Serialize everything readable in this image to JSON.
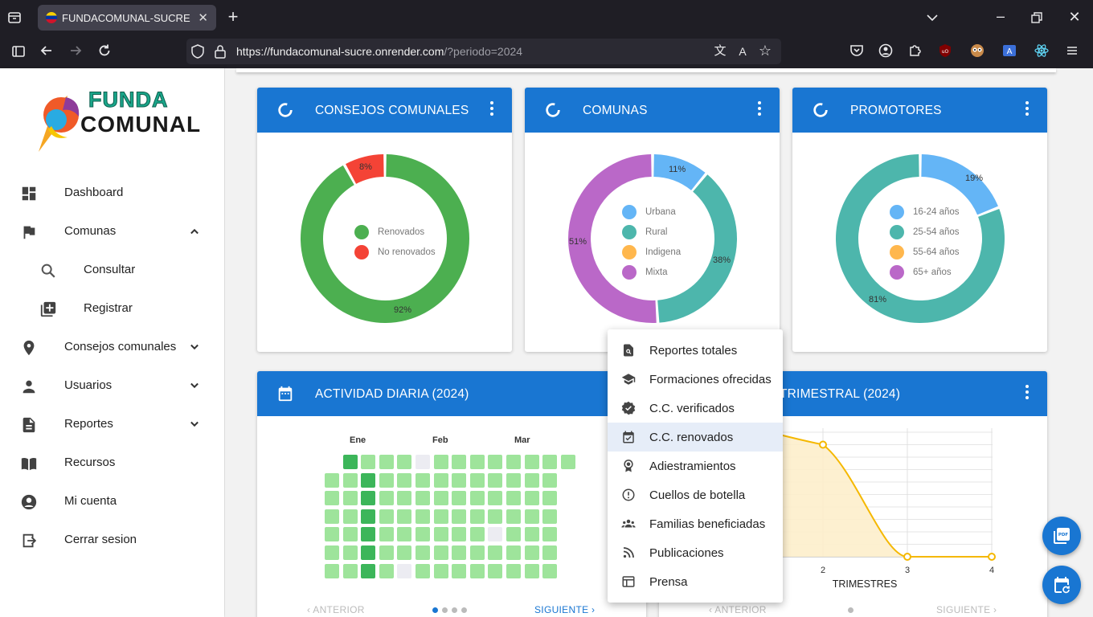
{
  "browser": {
    "tab_title": "FUNDACOMUNAL-SUCRE",
    "url_host": "https://fundacomunal-sucre.onrender.com",
    "url_rest": "/?periodo=2024"
  },
  "sidebar": {
    "logo_line1": "FUNDA",
    "logo_line2": "COMUNAL",
    "items": [
      {
        "label": "Dashboard"
      },
      {
        "label": "Comunas"
      },
      {
        "label": "Consultar"
      },
      {
        "label": "Registrar"
      },
      {
        "label": "Consejos comunales"
      },
      {
        "label": "Usuarios"
      },
      {
        "label": "Reportes"
      },
      {
        "label": "Recursos"
      },
      {
        "label": "Mi cuenta"
      },
      {
        "label": "Cerrar sesion"
      }
    ]
  },
  "cards": {
    "consejos": {
      "title": "CONSEJOS COMUNALES",
      "legend": [
        "Renovados",
        "No renovados"
      ],
      "pct_labels": [
        "8%",
        "92%"
      ]
    },
    "comunas": {
      "title": "COMUNAS",
      "legend": [
        "Urbana",
        "Rural",
        "Indigena",
        "Mixta"
      ],
      "pct_labels": [
        "11%",
        "38%",
        "51%"
      ]
    },
    "promotores": {
      "title": "PROMOTORES",
      "legend": [
        "16-24 años",
        "25-54 años",
        "55-64 años",
        "65+ años"
      ],
      "pct_labels": [
        "19%",
        "81%"
      ]
    },
    "actividad": {
      "title": "ACTIVIDAD DIARIA (2024)",
      "months": [
        "Ene",
        "Feb",
        "Mar"
      ],
      "prev": "ANTERIOR",
      "next": "SIGUIENTE"
    },
    "trimestral": {
      "title": "TRIMESTRAL (2024)",
      "xlabel": "TRIMESTRES",
      "ticks": [
        "2",
        "3",
        "4"
      ],
      "prev": "ANTERIOR",
      "next": "SIGUIENTE"
    }
  },
  "chart_data": [
    {
      "type": "pie",
      "title": "CONSEJOS COMUNALES",
      "categories": [
        "Renovados",
        "No renovados"
      ],
      "values": [
        92,
        8
      ],
      "colors": [
        "#4caf50",
        "#f44336"
      ]
    },
    {
      "type": "pie",
      "title": "COMUNAS",
      "categories": [
        "Urbana",
        "Rural",
        "Indigena",
        "Mixta"
      ],
      "values": [
        11,
        38,
        0,
        51
      ],
      "colors": [
        "#64b5f6",
        "#4db6ac",
        "#ffb74d",
        "#ba68c8"
      ]
    },
    {
      "type": "pie",
      "title": "PROMOTORES",
      "categories": [
        "16-24 años",
        "25-54 años",
        "55-64 años",
        "65+ años"
      ],
      "values": [
        19,
        81,
        0,
        0
      ],
      "colors": [
        "#64b5f6",
        "#4db6ac",
        "#ffb74d",
        "#ba68c8"
      ]
    },
    {
      "type": "line",
      "title": "TRIMESTRAL (2024)",
      "xlabel": "TRIMESTRES",
      "x": [
        2,
        3,
        4
      ],
      "y": [
        0.9,
        0,
        0
      ],
      "color": "#f5b800"
    }
  ],
  "menu": {
    "items": [
      {
        "label": "Reportes totales"
      },
      {
        "label": "Formaciones ofrecidas"
      },
      {
        "label": "C.C. verificados"
      },
      {
        "label": "C.C. renovados"
      },
      {
        "label": "Adiestramientos"
      },
      {
        "label": "Cuellos de botella"
      },
      {
        "label": "Familias beneficiadas"
      },
      {
        "label": "Publicaciones"
      },
      {
        "label": "Prensa"
      }
    ]
  },
  "colors": {
    "primary": "#1976d2",
    "green": "#4caf50",
    "red": "#f44336"
  }
}
